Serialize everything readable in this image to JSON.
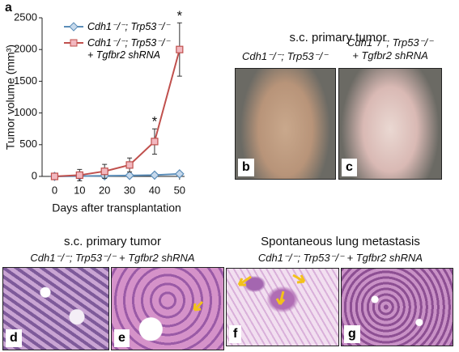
{
  "chart_data": {
    "type": "line",
    "panel_label": "a",
    "y_label": "Tumor volume (mm³)",
    "x_label": "Days after transplantation",
    "x": [
      0,
      10,
      20,
      30,
      40,
      50
    ],
    "series": [
      {
        "name": "Cdh1⁻/⁻; Trp53⁻/⁻",
        "color": "#5b8db8",
        "marker": "diamond",
        "values": [
          0,
          5,
          10,
          15,
          20,
          40
        ],
        "errors": [
          0,
          5,
          5,
          5,
          10,
          20
        ]
      },
      {
        "name": "Cdh1⁻/⁻; Trp53⁻/⁻\n+ Tgfbr2 shRNA",
        "color": "#c0504d",
        "marker": "square",
        "values": [
          0,
          20,
          80,
          180,
          550,
          2000
        ],
        "errors": [
          0,
          90,
          110,
          110,
          200,
          420
        ]
      }
    ],
    "annotations": [
      {
        "x": 40,
        "label": "*"
      },
      {
        "x": 50,
        "label": "*"
      }
    ],
    "xlim": [
      -5,
      52
    ],
    "xticks": [
      0,
      10,
      20,
      30,
      40,
      50
    ],
    "ylim": [
      0,
      2500
    ],
    "yticks": [
      0,
      500,
      1000,
      1500,
      2000,
      2500
    ]
  },
  "panels": {
    "top": {
      "title": "s.c. primary tumor",
      "columns": [
        {
          "label": "Cdh1⁻/⁻; Trp53⁻/⁻",
          "panel": "b"
        },
        {
          "label": "Cdh1⁻/⁻; Trp53⁻/⁻\n+ Tgfbr2 shRNA",
          "panel": "c"
        }
      ]
    },
    "bottom_left": {
      "title": "s.c. primary tumor",
      "subtitle": "Cdh1⁻/⁻; Trp53⁻/⁻ + Tgfbr2 shRNA",
      "panels": [
        "d",
        "e"
      ]
    },
    "bottom_right": {
      "title": "Spontaneous lung metastasis",
      "subtitle": "Cdh1⁻/⁻; Trp53⁻/⁻ + Tgfbr2 shRNA",
      "panels": [
        "f",
        "g"
      ]
    }
  }
}
